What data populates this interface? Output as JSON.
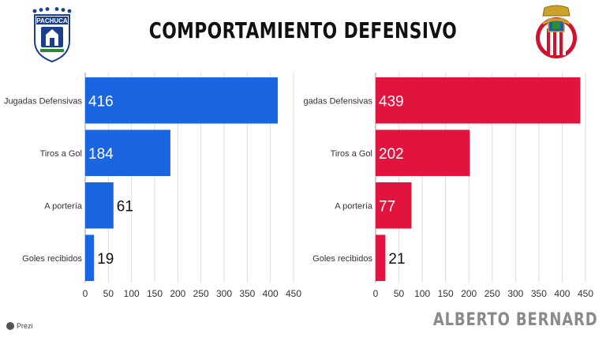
{
  "title": "COMPORTAMIENTO DEFENSIVO",
  "credit": "ALBERTO BERNARD",
  "watermark": "Prezi",
  "logos": {
    "left": {
      "name": "Pachuca",
      "text": "PACHUCA"
    },
    "right": {
      "name": "Chivas"
    }
  },
  "chart_data": [
    {
      "type": "bar",
      "orientation": "horizontal",
      "team": "Pachuca",
      "color": "#1a66e0",
      "categories": [
        "Jugadas Defensivas",
        "Tiros a Gol",
        "A portería",
        "Goles recibidos"
      ],
      "values": [
        416,
        184,
        61,
        19
      ],
      "xlim": [
        0,
        450
      ],
      "xticks": [
        0,
        50,
        100,
        150,
        200,
        250,
        300,
        350,
        400,
        450
      ],
      "grid": true
    },
    {
      "type": "bar",
      "orientation": "horizontal",
      "team": "Chivas",
      "color": "#e0143c",
      "categories": [
        "Jugadas Defensivas",
        "Tiros a Gol",
        "A portería",
        "Goles recibidos"
      ],
      "values": [
        439,
        202,
        77,
        21
      ],
      "xlim": [
        0,
        450
      ],
      "xticks": [
        0,
        50,
        100,
        150,
        200,
        250,
        300,
        350,
        400,
        450
      ],
      "grid": true
    }
  ]
}
